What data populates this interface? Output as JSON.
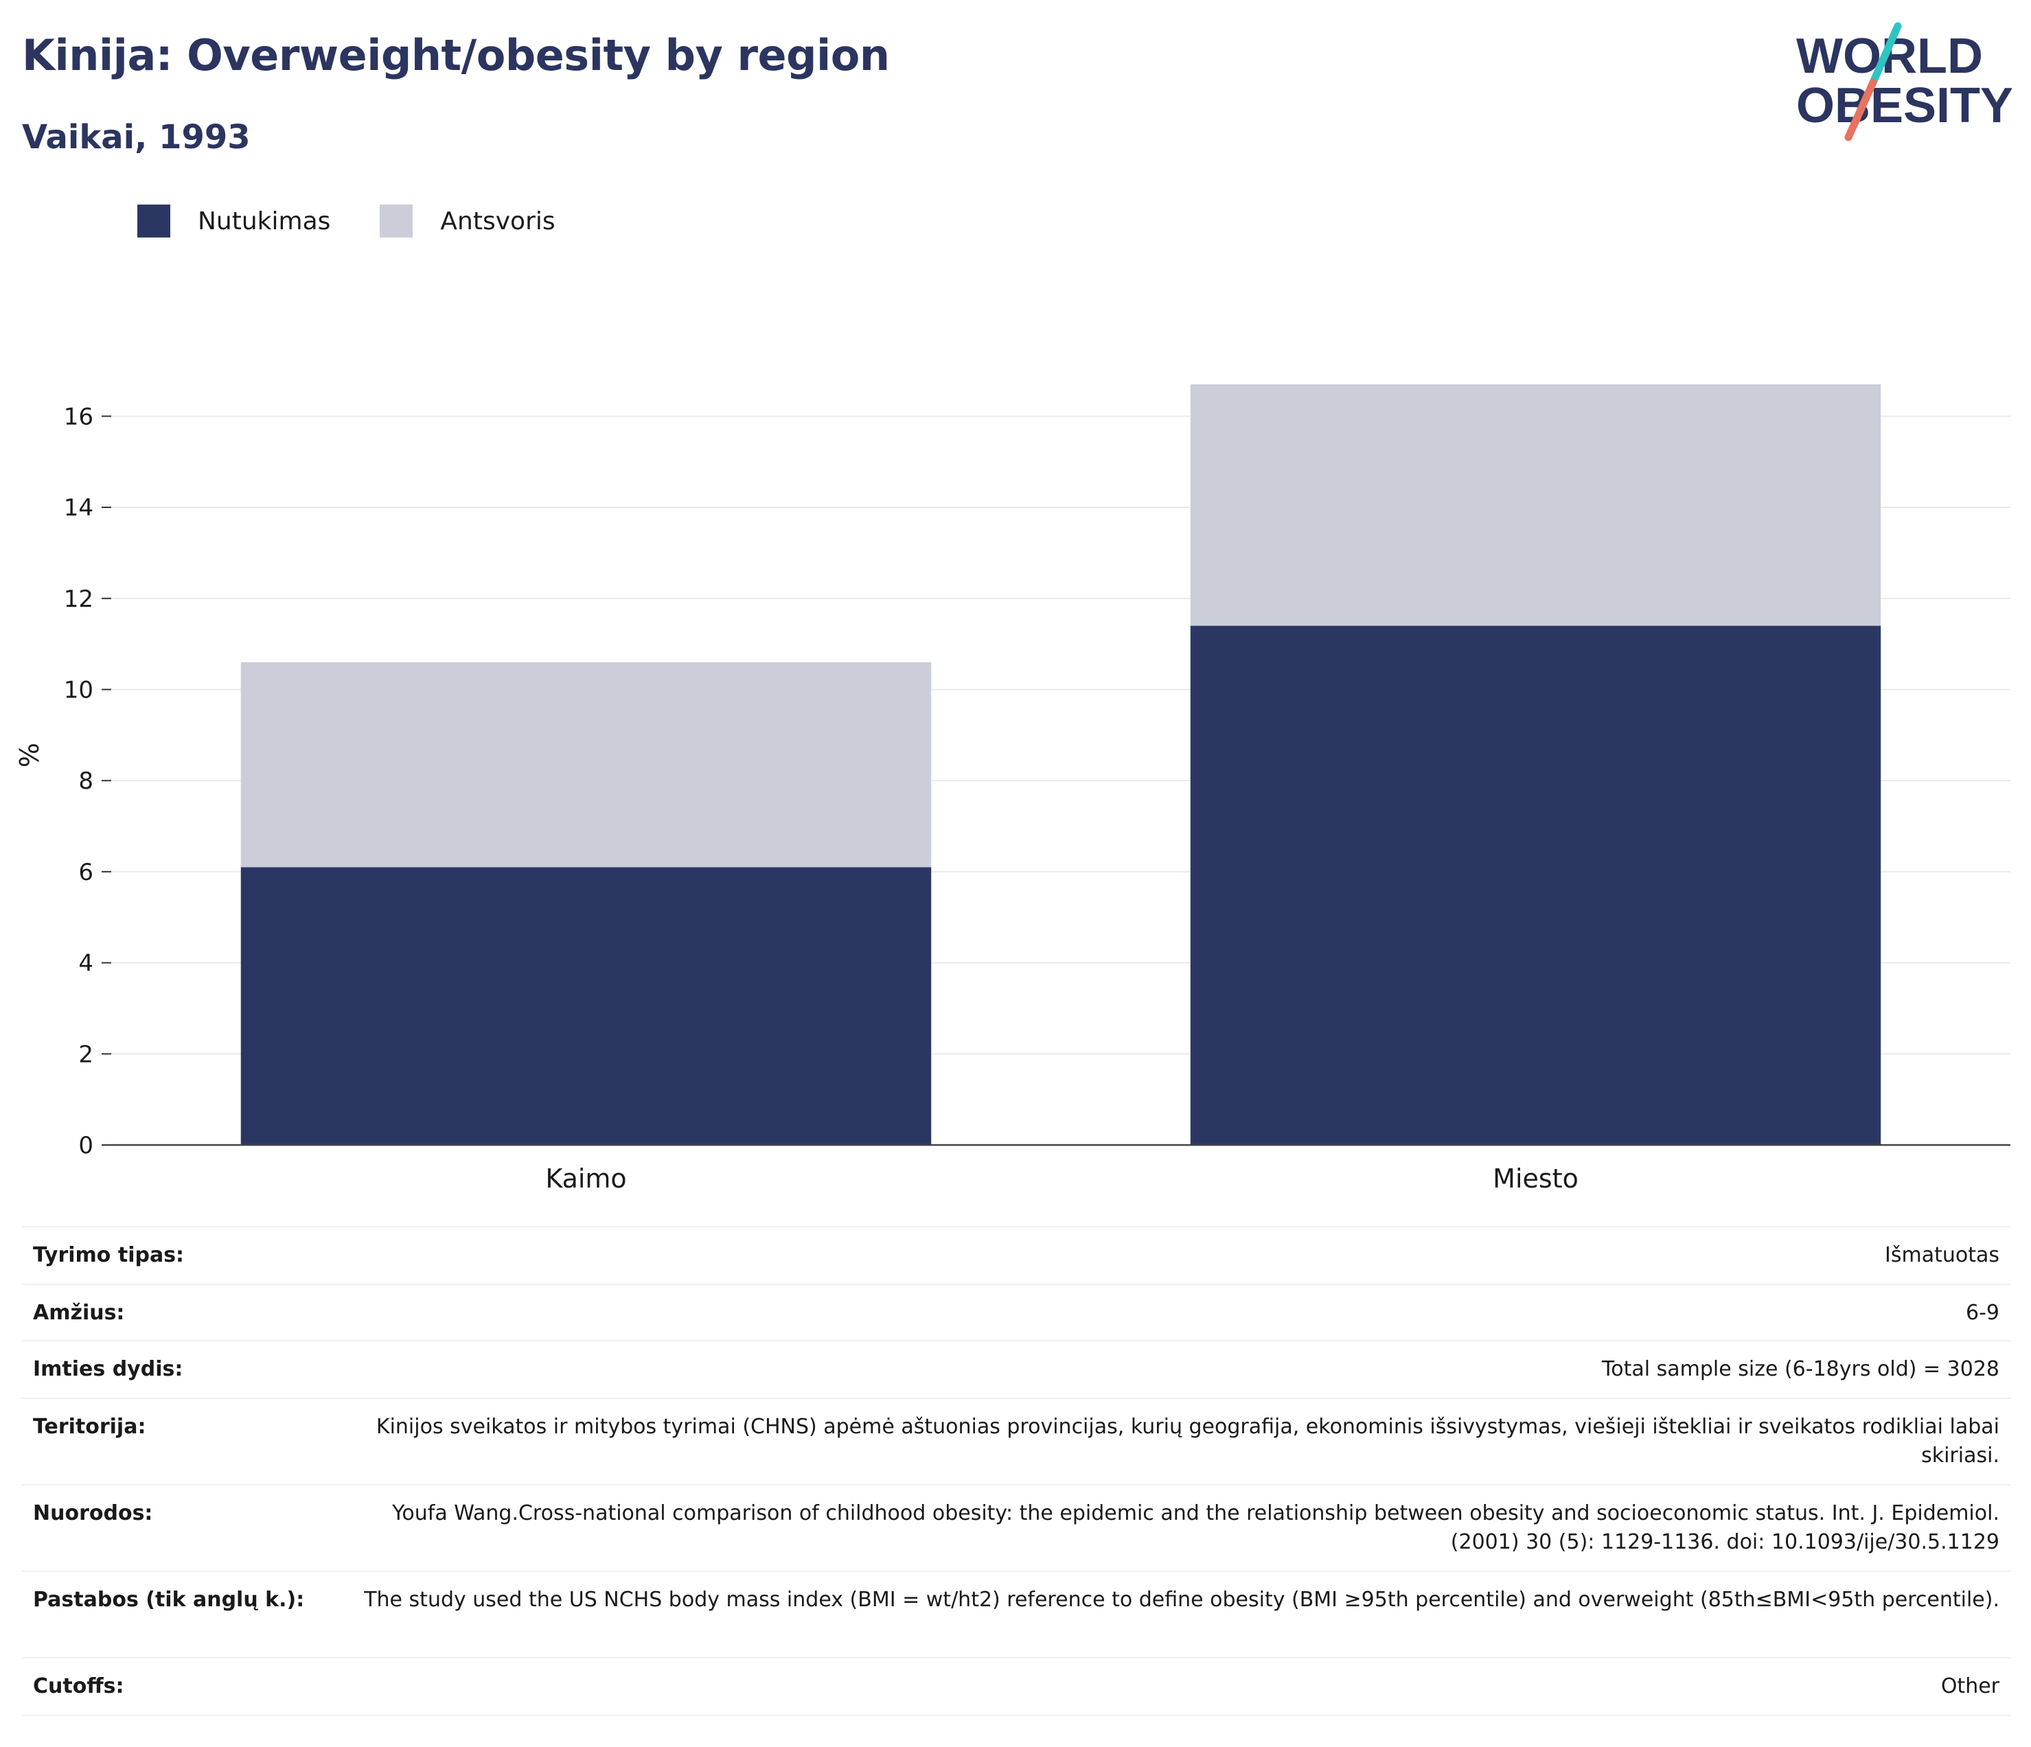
{
  "header": {
    "title": "Kinija: Overweight/obesity by region",
    "subtitle": "Vaikai, 1993",
    "logo_line1": "WORLD",
    "logo_line2": "OBESITY"
  },
  "colors": {
    "obesity": "#2b3763",
    "overweight": "#cbcdd8",
    "title": "#2b3560",
    "logo_teal": "#2ec4c4",
    "logo_coral": "#e8735f"
  },
  "chart_data": {
    "type": "bar",
    "stacked": true,
    "categories": [
      "Kaimo",
      "Miesto"
    ],
    "series": [
      {
        "name": "Nutukimas",
        "values": [
          6.1,
          11.4
        ]
      },
      {
        "name": "Antsvoris",
        "values": [
          4.5,
          5.3
        ]
      }
    ],
    "ylabel": "%",
    "xlabel": "",
    "ylim": [
      0,
      17
    ],
    "yticks": [
      0,
      2,
      4,
      6,
      8,
      10,
      12,
      14,
      16
    ],
    "grid": true,
    "legend_position": "top-left"
  },
  "info": [
    {
      "key": "Tyrimo tipas:",
      "value": "Išmatuotas"
    },
    {
      "key": "Amžius:",
      "value": "6-9"
    },
    {
      "key": "Imties dydis:",
      "value": "Total sample size (6-18yrs old) = 3028"
    },
    {
      "key": "Teritorija:",
      "value": "Kinijos sveikatos ir mitybos tyrimai (CHNS) apėmė aštuonias provincijas, kurių geografija, ekonominis išsivystymas, viešieji ištekliai ir sveikatos rodikliai labai skiriasi."
    },
    {
      "key": "Nuorodos:",
      "value": "Youfa Wang.Cross-national comparison of childhood obesity: the epidemic and the relationship between obesity and socioeconomic status. Int. J. Epidemiol. (2001) 30 (5): 1129-1136. doi: 10.1093/ije/30.5.1129"
    },
    {
      "key": "Pastabos (tik anglų k.):",
      "value": "The study used the US NCHS body mass index (BMI = wt/ht2) reference to define obesity (BMI ≥95th percentile) and overweight (85th≤BMI<95th percentile)."
    },
    {
      "key": "Cutoffs:",
      "value": "Other"
    }
  ]
}
